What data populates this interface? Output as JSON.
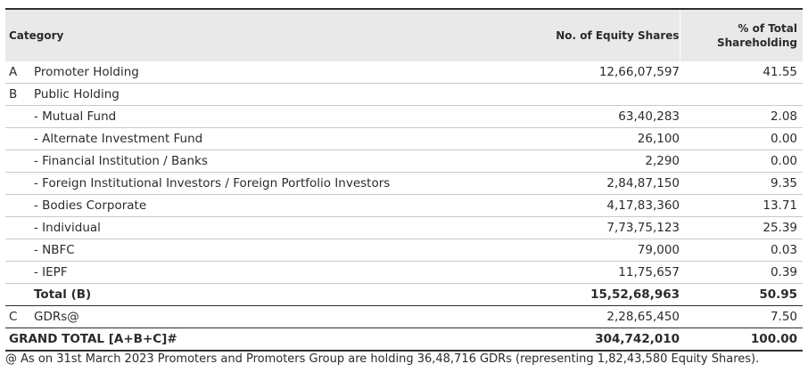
{
  "header": {
    "category": "Category",
    "shares": "No. of Equity Shares",
    "pct_line1": "% of Total",
    "pct_line2": "Shareholding"
  },
  "rows": [
    {
      "id": "A",
      "category": "Promoter Holding",
      "shares": "12,66,07,597",
      "pct": "41.55"
    },
    {
      "id": "B",
      "category": "Public Holding",
      "shares": "",
      "pct": ""
    },
    {
      "id": "",
      "category": "- Mutual Fund",
      "shares": "63,40,283",
      "pct": "2.08"
    },
    {
      "id": "",
      "category": "- Alternate Investment Fund",
      "shares": "26,100",
      "pct": "0.00"
    },
    {
      "id": "",
      "category": "- Financial Institution / Banks",
      "shares": "2,290",
      "pct": "0.00"
    },
    {
      "id": "",
      "category": "- Foreign Institutional Investors / Foreign Portfolio Investors",
      "shares": "2,84,87,150",
      "pct": "9.35"
    },
    {
      "id": "",
      "category": "- Bodies Corporate",
      "shares": "4,17,83,360",
      "pct": "13.71"
    },
    {
      "id": "",
      "category": "- Individual",
      "shares": "7,73,75,123",
      "pct": "25.39"
    },
    {
      "id": "",
      "category": "- NBFC",
      "shares": "79,000",
      "pct": "0.03"
    },
    {
      "id": "",
      "category": "- IEPF",
      "shares": "11,75,657",
      "pct": "0.39"
    },
    {
      "id": "",
      "category": "Total (B)",
      "shares": "15,52,68,963",
      "pct": "50.95"
    },
    {
      "id": "C",
      "category": "GDRs@",
      "shares": "2,28,65,450",
      "pct": "7.50"
    }
  ],
  "grand_total": {
    "label": "GRAND TOTAL [A+B+C]#",
    "shares": "304,742,010",
    "pct": "100.00"
  },
  "footnote": "@ As on 31st March 2023 Promoters and Promoters Group are holding 36,48,716 GDRs (representing 1,82,43,580 Equity Shares)."
}
